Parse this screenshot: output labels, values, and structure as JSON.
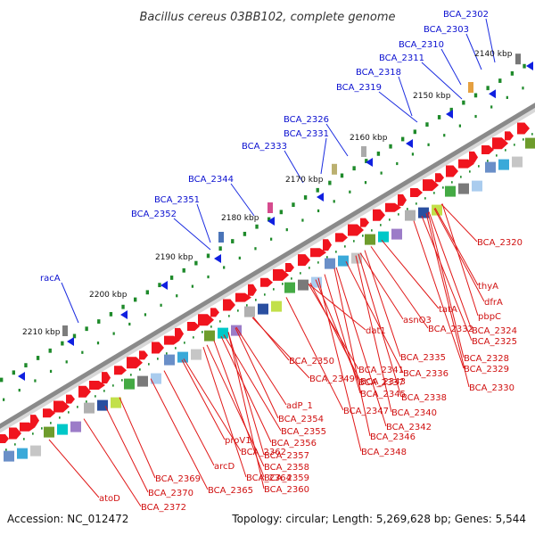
{
  "title": "Bacillus cereus 03BB102, complete genome",
  "footer": {
    "accession": "Accession: NC_012472",
    "summary": "Topology: circular; Length: 5,269,628 bp; Genes: 5,544"
  },
  "ticks": [
    "2140 kbp",
    "2150 kbp",
    "2160 kbp",
    "2170 kbp",
    "2180 kbp",
    "2190 kbp",
    "2200 kbp",
    "2210 kbp"
  ],
  "upper_labels": [
    "BCA_2302",
    "BCA_2303",
    "BCA_2310",
    "BCA_2311",
    "BCA_2318",
    "BCA_2319",
    "BCA_2326",
    "BCA_2331",
    "BCA_2333",
    "BCA_2344",
    "BCA_2351",
    "BCA_2352",
    "racA"
  ],
  "lower_labels": [
    "BCA_2320",
    "thyA",
    "dfrA",
    "tatA",
    "pbpC",
    "BCA_2324",
    "BCA_2325",
    "BCA_2332",
    "BCA_2328",
    "asnO3",
    "BCA_2329",
    "dat1",
    "BCA_2335",
    "BCA_2330",
    "BCA_2341",
    "BCA_2336",
    "BCA_2350",
    "BCA_2337",
    "BCA_2343",
    "BCA_2349",
    "BCA_2345",
    "BCA_2338",
    "adP_1",
    "BCA_2347",
    "BCA_2340",
    "BCA_2354",
    "BCA_2342",
    "BCA_2355",
    "BCA_2346",
    "proV1",
    "BCA_2356",
    "BCA_2362",
    "BCA_2357",
    "BCA_2348",
    "arcD",
    "BCA_2358",
    "BCA_2369",
    "BCA_2364",
    "BCA_2359",
    "BCA_2365",
    "BCA_2360",
    "BCA_2370",
    "atoD",
    "BCA_2372"
  ]
}
